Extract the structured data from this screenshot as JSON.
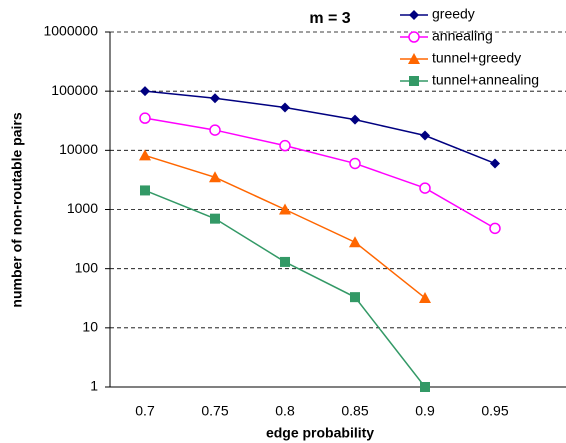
{
  "chart_data": {
    "type": "line",
    "title": "m = 3",
    "x_label": "edge probability",
    "y_label": "number of non-routable pairs",
    "categories": [
      "0.7",
      "0.75",
      "0.8",
      "0.85",
      "0.9",
      "0.95"
    ],
    "log_y": true,
    "grid": true,
    "legend": "top-right",
    "ylim": [
      1,
      1000000
    ],
    "yticks": [
      1,
      10,
      100,
      1000,
      10000,
      100000,
      1000000
    ],
    "series": [
      {
        "name": "greedy",
        "color": "#000080",
        "marker": "diamond",
        "values": [
          100000,
          76000,
          53000,
          33000,
          17800,
          6000
        ]
      },
      {
        "name": "annealing",
        "color": "#ff00ff",
        "marker": "circle-open",
        "values": [
          35000,
          22000,
          12000,
          6000,
          2300,
          480
        ]
      },
      {
        "name": "tunnel+greedy",
        "color": "#ff6600",
        "marker": "triangle",
        "values": [
          8200,
          3500,
          1000,
          280,
          32,
          null
        ]
      },
      {
        "name": "tunnel+annealing",
        "color": "#339966",
        "marker": "square",
        "values": [
          2100,
          700,
          130,
          33,
          1,
          null
        ]
      }
    ]
  }
}
